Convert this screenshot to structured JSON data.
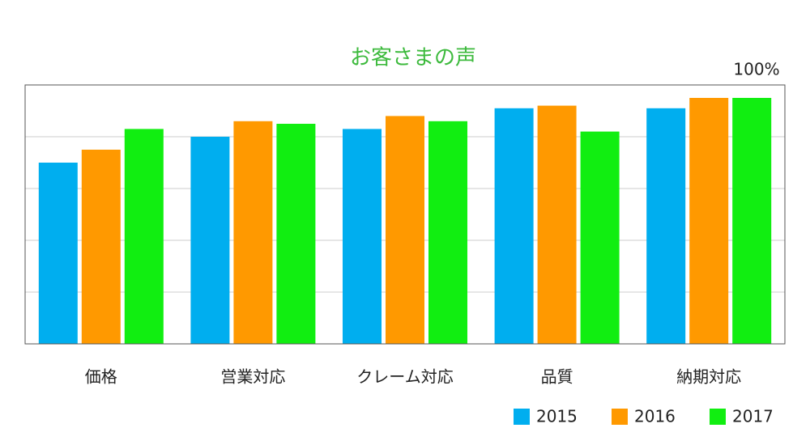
{
  "chart_data": {
    "type": "bar",
    "title": "お客さまの声",
    "categories": [
      "価格",
      "営業対応",
      "クレーム対応",
      "品質",
      "納期対応"
    ],
    "series": [
      {
        "name": "2015",
        "color": "#00aeef",
        "values": [
          70,
          80,
          83,
          91,
          91
        ]
      },
      {
        "name": "2016",
        "color": "#ff9900",
        "values": [
          75,
          86,
          88,
          92,
          95
        ]
      },
      {
        "name": "2017",
        "color": "#11ee11",
        "values": [
          83,
          85,
          86,
          82,
          95
        ]
      }
    ],
    "ylim": [
      0,
      100
    ],
    "yticks": [
      {
        "value": 100,
        "label": "100%"
      }
    ],
    "ygrid": [
      20,
      40,
      60,
      80
    ],
    "grid": true,
    "legend": "bottom-right"
  }
}
